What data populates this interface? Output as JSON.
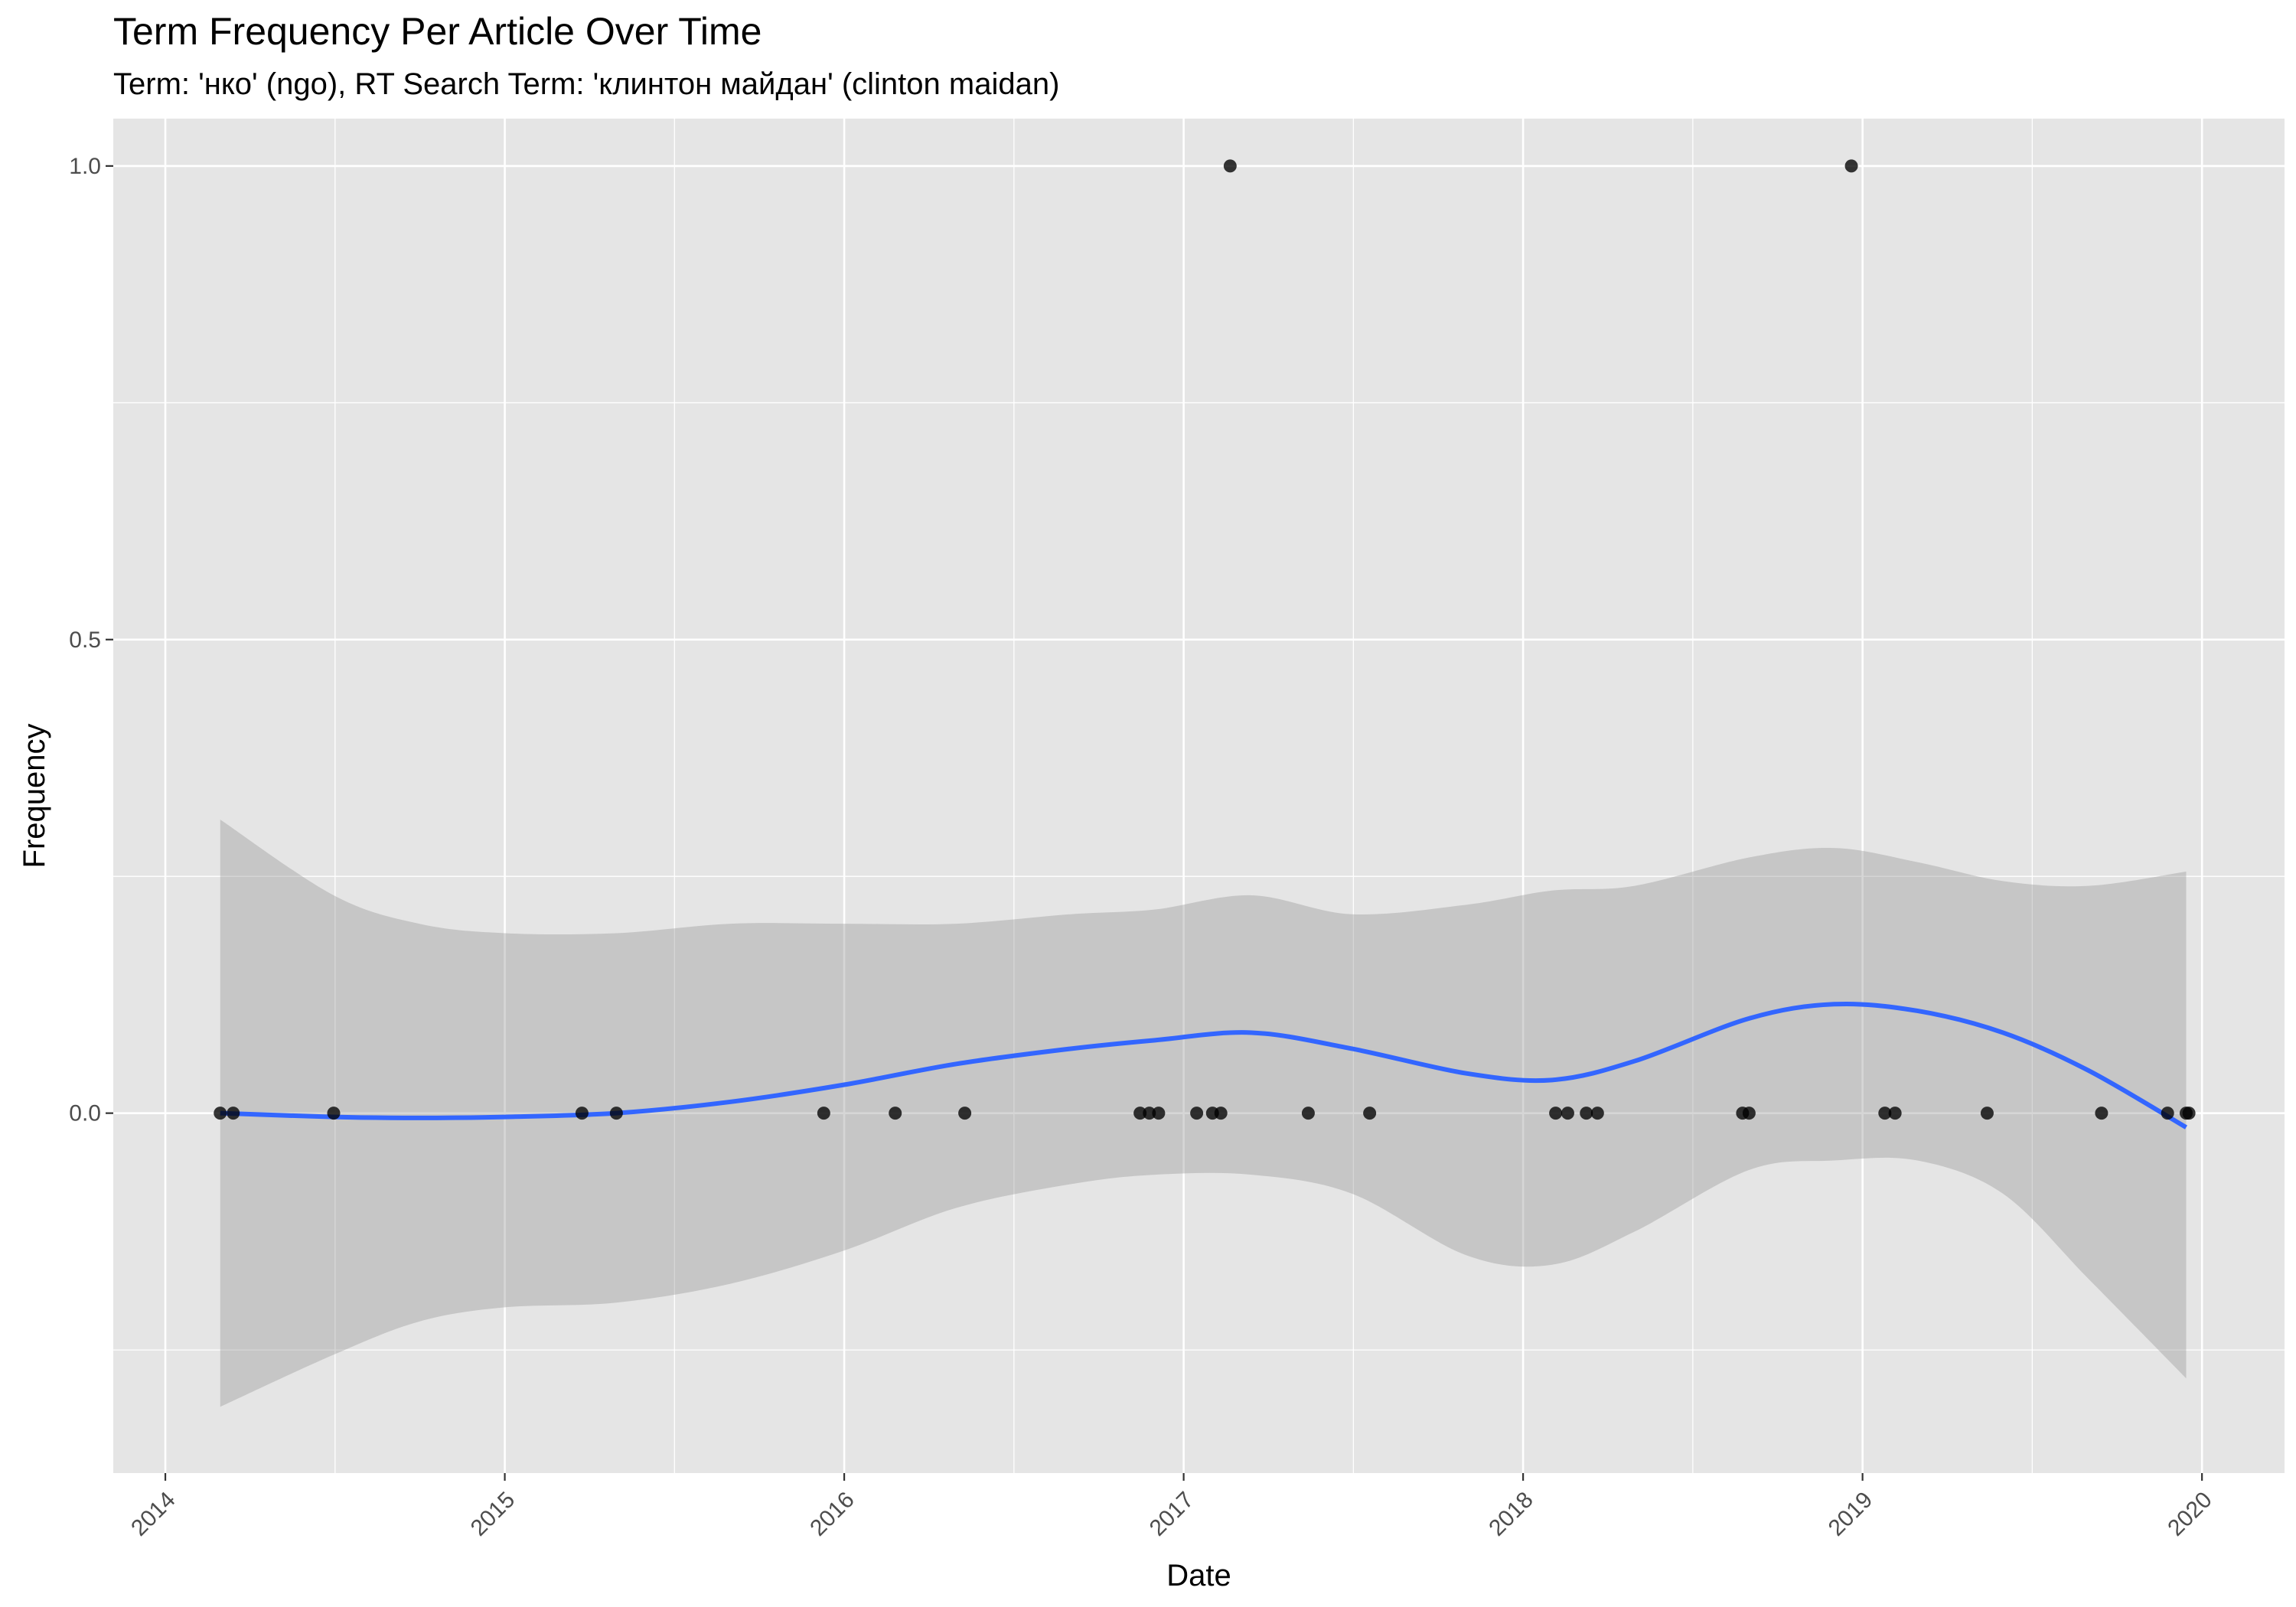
{
  "chart_data": {
    "type": "scatter",
    "title": "Term Frequency Per Article Over Time",
    "subtitle": "Term: 'нко' (ngo), RT Search Term: 'клинтон майдан' (clinton maidan)",
    "xlabel": "Date",
    "ylabel": "Frequency",
    "x_type": "date",
    "xlim": [
      "2013-11-06",
      "2020-03-30"
    ],
    "ylim": [
      -0.38,
      1.05
    ],
    "x_ticks": [
      "2014",
      "2015",
      "2016",
      "2017",
      "2018",
      "2019",
      "2020"
    ],
    "x_tick_dates": [
      "2014-01-01",
      "2015-01-01",
      "2016-01-01",
      "2017-01-01",
      "2018-01-01",
      "2019-01-01",
      "2020-01-01"
    ],
    "y_ticks": [
      0.0,
      0.5,
      1.0
    ],
    "y_tick_labels": [
      "0.0",
      "0.5",
      "1.0"
    ],
    "grid": true,
    "legend": "none",
    "colors": {
      "panel_background": "#e5e5e5",
      "grid": "#ffffff",
      "points": "#000000",
      "smooth_line": "#3366ff",
      "confidence_band": "#999999"
    },
    "series": [
      {
        "type": "points",
        "x": [
          "2014-03-01",
          "2014-03-15",
          "2014-07-01",
          "2015-03-25",
          "2015-05-01",
          "2015-12-10",
          "2016-02-25",
          "2016-05-10",
          "2016-11-15",
          "2016-11-25",
          "2016-12-05",
          "2017-01-15",
          "2017-02-01",
          "2017-02-10",
          "2017-02-20",
          "2017-05-15",
          "2017-07-20",
          "2018-02-05",
          "2018-02-18",
          "2018-03-10",
          "2018-03-22",
          "2018-08-25",
          "2018-09-01",
          "2018-12-20",
          "2019-01-25",
          "2019-02-05",
          "2019-05-15",
          "2019-09-15",
          "2019-11-25",
          "2019-12-15",
          "2019-12-18"
        ],
        "y": [
          0,
          0,
          0,
          0,
          0,
          0,
          0,
          0,
          0,
          0,
          0,
          0,
          0,
          0,
          1,
          0,
          0,
          0,
          0,
          0,
          0,
          0,
          0,
          1,
          0,
          0,
          0,
          0,
          0,
          0,
          0
        ]
      },
      {
        "type": "smooth",
        "x": [
          "2014-03-01",
          "2014-07-01",
          "2014-10-01",
          "2015-01-01",
          "2015-05-01",
          "2015-09-01",
          "2016-01-01",
          "2016-05-01",
          "2016-09-01",
          "2016-12-01",
          "2017-03-15",
          "2017-07-01",
          "2017-11-01",
          "2018-02-01",
          "2018-05-01",
          "2018-09-01",
          "2018-12-01",
          "2019-03-01",
          "2019-06-01",
          "2019-09-01",
          "2019-12-15"
        ],
        "y": [
          0.0,
          -0.004,
          -0.005,
          -0.004,
          0.0,
          0.012,
          0.03,
          0.052,
          0.068,
          0.077,
          0.085,
          0.068,
          0.042,
          0.035,
          0.055,
          0.1,
          0.115,
          0.108,
          0.085,
          0.045,
          -0.015
        ],
        "lower": [
          -0.31,
          -0.255,
          -0.22,
          -0.205,
          -0.2,
          -0.18,
          -0.145,
          -0.1,
          -0.075,
          -0.065,
          -0.065,
          -0.085,
          -0.15,
          -0.16,
          -0.125,
          -0.06,
          -0.05,
          -0.05,
          -0.085,
          -0.175,
          -0.28
        ],
        "upper": [
          0.31,
          0.23,
          0.2,
          0.19,
          0.19,
          0.2,
          0.2,
          0.2,
          0.21,
          0.215,
          0.23,
          0.21,
          0.22,
          0.235,
          0.24,
          0.27,
          0.28,
          0.265,
          0.245,
          0.24,
          0.255
        ]
      }
    ]
  }
}
